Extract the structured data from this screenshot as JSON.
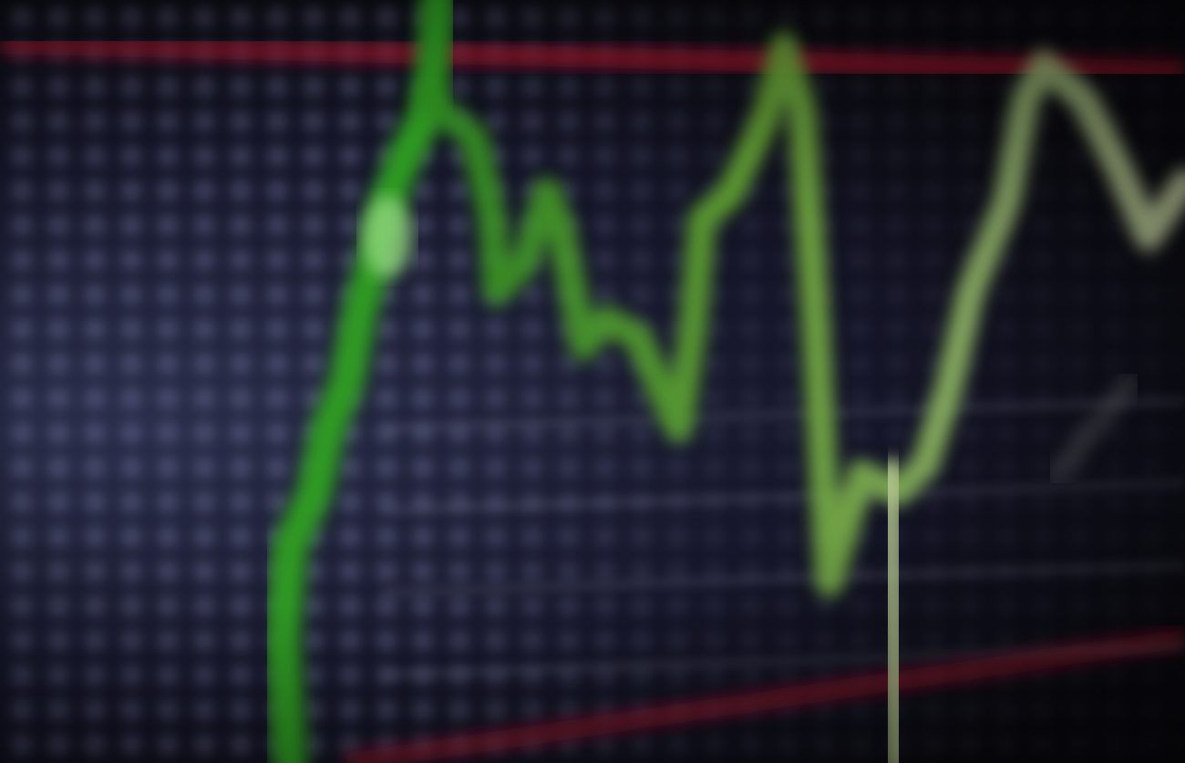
{
  "scene": {
    "description_colors": {
      "background": "#0a0a10",
      "led_grid": "#969bc8",
      "reference_line": "#c01830",
      "trace_bright": "#3fae2a",
      "trace_pale": "#c8d8a8"
    }
  }
}
